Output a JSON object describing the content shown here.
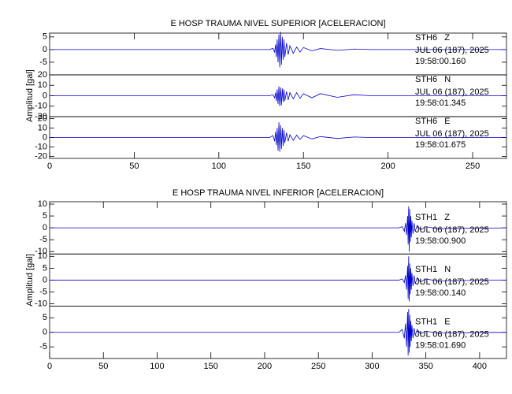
{
  "chart_data": [
    {
      "type": "line",
      "title": "E HOSP TRAUMA NIVEL SUPERIOR [ACELERACION]",
      "ylabel": "Amplitud [gal]",
      "xlim": [
        0,
        270
      ],
      "xticks": [
        0,
        50,
        100,
        150,
        200,
        250
      ],
      "x": [
        0,
        130,
        132,
        133,
        133.5,
        134,
        134.5,
        135,
        135.5,
        136,
        136.5,
        137,
        137.5,
        138,
        138.5,
        139,
        140,
        141,
        142,
        144,
        146,
        148,
        150,
        155,
        160,
        170,
        180,
        190,
        270
      ],
      "panels": [
        {
          "ylim": [
            -10,
            6.5
          ],
          "yticks": [
            -5,
            0,
            5
          ],
          "annotations": [
            "STH6   Z",
            "JUL 06 (187), 2025",
            "19:58:00.160"
          ],
          "series": [
            {
              "color": "#0000cc",
              "values": [
                0,
                0,
                0.5,
                -1,
                2,
                -3,
                4,
                -5,
                6,
                -7,
                7,
                -6,
                5,
                -4,
                4,
                -3,
                2.5,
                -2,
                1.5,
                -1.5,
                1,
                -1,
                0.8,
                -0.5,
                0.4,
                -0.3,
                0.2,
                0,
                0
              ]
            }
          ]
        },
        {
          "ylim": [
            -20,
            20
          ],
          "yticks": [
            -20,
            -10,
            0,
            10,
            20
          ],
          "annotations": [
            "STH6   N",
            "JUL 06 (187), 2025",
            "19:58:01.345"
          ],
          "series": [
            {
              "color": "#0000cc",
              "values": [
                0,
                0,
                1,
                -2,
                3,
                -5,
                6,
                -8,
                9,
                -10,
                8,
                -9,
                7,
                -6,
                6,
                -5,
                4,
                -4,
                3,
                -3,
                3,
                -2.5,
                2,
                -2,
                2,
                -1.5,
                1,
                0,
                0
              ]
            }
          ]
        },
        {
          "ylim": [
            -22,
            22
          ],
          "yticks": [
            -20,
            -10,
            0,
            10,
            20
          ],
          "annotations": [
            "STH6   E",
            "JUL 06 (187), 2025",
            "19:58:01.675"
          ],
          "series": [
            {
              "color": "#0000cc",
              "values": [
                0,
                0,
                2,
                -4,
                6,
                -8,
                10,
                -14,
                16,
                -15,
                13,
                -12,
                10,
                -9,
                8,
                -6,
                5,
                -4,
                3,
                -3,
                2.5,
                -2,
                2,
                -1.5,
                1,
                -1,
                0.5,
                0,
                0
              ]
            }
          ]
        }
      ]
    },
    {
      "type": "line",
      "title": "E HOSP TRAUMA NIVEL INFERIOR [ACELERACION]",
      "ylabel": "Amplitud [gal]",
      "xlim": [
        0,
        425
      ],
      "xticks": [
        0,
        50,
        100,
        150,
        200,
        250,
        300,
        350,
        400
      ],
      "x": [
        0,
        325,
        328,
        330,
        331,
        332,
        333,
        333.5,
        334,
        334.5,
        335,
        335.5,
        336,
        336.5,
        337,
        338,
        339,
        340,
        342,
        345,
        350,
        360,
        425
      ],
      "panels": [
        {
          "ylim": [
            -11,
            11
          ],
          "yticks": [
            -10,
            -5,
            0,
            5,
            10
          ],
          "annotations": [
            "STH1   Z",
            "JUL 06 (187), 2025",
            "19:58:00.900"
          ],
          "series": [
            {
              "color": "#0000cc",
              "values": [
                0,
                0,
                0.5,
                -1.5,
                2,
                -3,
                5,
                -7,
                9,
                -10,
                8,
                -6,
                5,
                -4,
                3,
                -2.5,
                2,
                -1.5,
                1,
                -0.8,
                0.5,
                -0.3,
                0
              ]
            }
          ]
        },
        {
          "ylim": [
            -11,
            11
          ],
          "yticks": [
            -10,
            -5,
            0,
            5,
            10
          ],
          "annotations": [
            "STH1   N",
            "JUL 06 (187), 2025",
            "19:58:00.140"
          ],
          "series": [
            {
              "color": "#0000cc",
              "values": [
                0,
                0,
                0.5,
                -1,
                2,
                -4,
                6,
                -8,
                10,
                -9,
                7,
                -6,
                5,
                -4,
                3,
                -2.5,
                2,
                -1.5,
                1,
                -0.8,
                0.5,
                -0.3,
                0
              ]
            }
          ]
        },
        {
          "ylim": [
            -9,
            9
          ],
          "yticks": [
            -5,
            0,
            5
          ],
          "annotations": [
            "STH1   E",
            "JUL 06 (187), 2025",
            "19:58:01.690"
          ],
          "series": [
            {
              "color": "#0000cc",
              "values": [
                0,
                0,
                1,
                -2,
                3,
                -5,
                7,
                -8,
                8,
                -7,
                6,
                -5,
                4,
                -3,
                2.5,
                -2,
                1.5,
                -1,
                1,
                -0.5,
                0.4,
                -0.2,
                0
              ]
            }
          ]
        }
      ]
    }
  ]
}
